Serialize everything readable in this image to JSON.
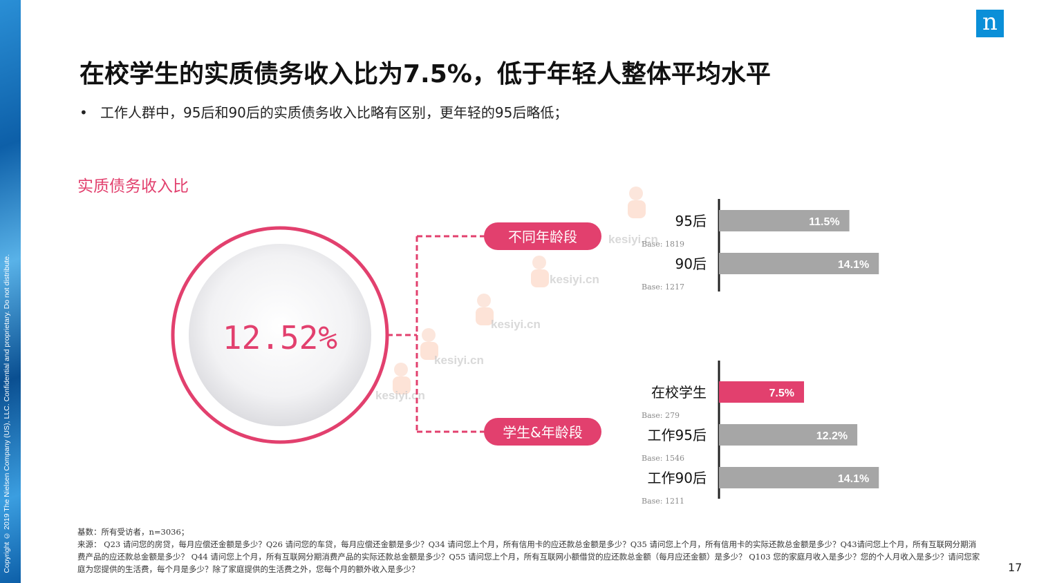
{
  "copyright": "Copyright © 2019 The Nielsen Company (US), LLC. Confidential and proprietary. Do not distribute.",
  "logo": "n",
  "title": "在校学生的实质债务收入比为7.5%，低于年轻人整体平均水平",
  "bullet": "工作人群中，95后和90后的实质债务收入比略有区别，更年轻的95后略低；",
  "section_label": "实质债务收入比",
  "total_value": "12.52%",
  "branch_labels": {
    "age": "不同年龄段",
    "student": "学生&年龄段"
  },
  "watermark": "kesiyi.cn",
  "colors": {
    "accent": "#e2406e",
    "bar_gray": "#a6a6a6",
    "logo_blue": "#0a8fd8"
  },
  "chart_data": [
    {
      "type": "bar",
      "orientation": "horizontal",
      "group": "不同年龄段",
      "categories": [
        "95后",
        "90后"
      ],
      "values": [
        11.5,
        14.1
      ],
      "value_labels": [
        "11.5%",
        "14.1%"
      ],
      "bases": [
        "Base: 1819",
        "Base: 1217"
      ],
      "highlight": [
        false,
        false
      ]
    },
    {
      "type": "bar",
      "orientation": "horizontal",
      "group": "学生&年龄段",
      "categories": [
        "在校学生",
        "工作95后",
        "工作90后"
      ],
      "values": [
        7.5,
        12.2,
        14.1
      ],
      "value_labels": [
        "7.5%",
        "12.2%",
        "14.1%"
      ],
      "bases": [
        "Base: 279",
        "Base: 1546",
        "Base: 1211"
      ],
      "highlight": [
        true,
        false,
        false
      ]
    }
  ],
  "footnote": {
    "base": "基数：所有受访者，n=3036；",
    "source": "来源：  Q23 请问您的房贷，每月应偿还金额是多少？Q26 请问您的车贷，每月应偿还金额是多少？Q34 请问您上个月，所有信用卡的应还款总金额是多少？Q35 请问您上个月，所有信用卡的实际还款总金额是多少？Q43请问您上个月，所有互联网分期消费产品的应还款总金额是多少？  Q44 请问您上个月，所有互联网分期消费产品的实际还款总金额是多少？Q55 请问您上个月，所有互联网小额借贷的应还款总金额（每月应还金额）是多少？  Q103 您的家庭月收入是多少？您的个人月收入是多少？请问您家庭为您提供的生活费，每个月是多少？除了家庭提供的生活费之外，您每个月的额外收入是多少？"
  },
  "page_number": "17"
}
